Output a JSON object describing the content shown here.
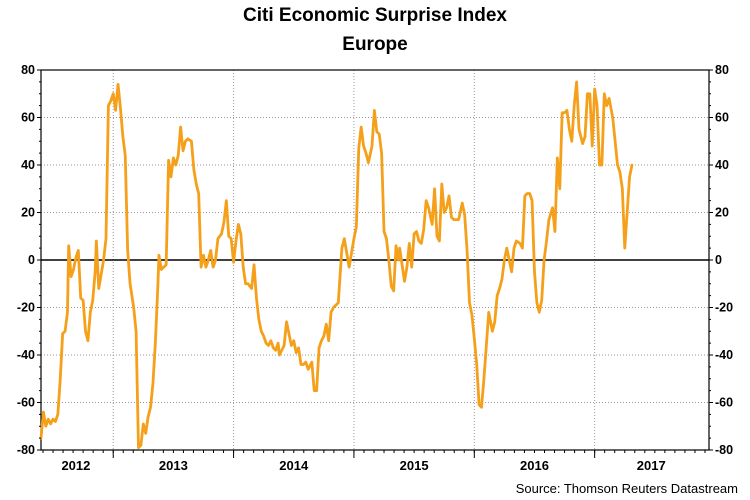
{
  "chart_data": {
    "type": "line",
    "title": "Citi Economic Surprise Index",
    "subtitle": "Europe",
    "xlabel": "",
    "ylabel": "",
    "ylim": [
      -80,
      80
    ],
    "y_ticks": [
      80,
      60,
      40,
      20,
      0,
      -20,
      -40,
      -60,
      -80
    ],
    "y_tick_labels": [
      "80",
      "60",
      "40",
      "20",
      "0",
      "-20",
      "-40",
      "-60",
      "-80"
    ],
    "x_range": [
      2011.9,
      2017.45
    ],
    "x_year_boundaries": [
      2012.5,
      2013.5,
      2014.5,
      2015.5,
      2016.5
    ],
    "x_year_labels": [
      {
        "label": "2012",
        "x": 2012.19
      },
      {
        "label": "2013",
        "x": 2013.0
      },
      {
        "label": "2014",
        "x": 2014.0
      },
      {
        "label": "2015",
        "x": 2015.0
      },
      {
        "label": "2016",
        "x": 2016.0
      },
      {
        "label": "2017",
        "x": 2016.97
      }
    ],
    "grid": true,
    "line_color": "#f5a01a",
    "series": [
      {
        "values": [
          [
            2011.9,
            -75
          ],
          [
            2011.92,
            -64
          ],
          [
            2011.94,
            -70
          ],
          [
            2011.96,
            -67
          ],
          [
            2011.98,
            -69
          ],
          [
            2012.0,
            -67
          ],
          [
            2012.02,
            -68
          ],
          [
            2012.04,
            -65
          ],
          [
            2012.06,
            -50
          ],
          [
            2012.08,
            -31
          ],
          [
            2012.1,
            -30
          ],
          [
            2012.12,
            -22
          ],
          [
            2012.13,
            6
          ],
          [
            2012.15,
            -7
          ],
          [
            2012.17,
            -4
          ],
          [
            2012.19,
            1
          ],
          [
            2012.21,
            4
          ],
          [
            2012.23,
            -16
          ],
          [
            2012.25,
            -17
          ],
          [
            2012.27,
            -30
          ],
          [
            2012.29,
            -34
          ],
          [
            2012.31,
            -22
          ],
          [
            2012.33,
            -17
          ],
          [
            2012.35,
            -5
          ],
          [
            2012.36,
            8
          ],
          [
            2012.38,
            -12
          ],
          [
            2012.4,
            -6
          ],
          [
            2012.42,
            0
          ],
          [
            2012.44,
            9
          ],
          [
            2012.46,
            65
          ],
          [
            2012.48,
            67
          ],
          [
            2012.5,
            70
          ],
          [
            2012.52,
            63
          ],
          [
            2012.54,
            74
          ],
          [
            2012.56,
            64
          ],
          [
            2012.58,
            52
          ],
          [
            2012.6,
            44
          ],
          [
            2012.62,
            4
          ],
          [
            2012.64,
            -10
          ],
          [
            2012.67,
            -20
          ],
          [
            2012.69,
            -30
          ],
          [
            2012.71,
            -79
          ],
          [
            2012.73,
            -78
          ],
          [
            2012.75,
            -69
          ],
          [
            2012.77,
            -73
          ],
          [
            2012.79,
            -66
          ],
          [
            2012.81,
            -62
          ],
          [
            2012.83,
            -52
          ],
          [
            2012.85,
            -35
          ],
          [
            2012.87,
            -12
          ],
          [
            2012.88,
            2
          ],
          [
            2012.9,
            -4
          ],
          [
            2012.92,
            -3
          ],
          [
            2012.94,
            -2
          ],
          [
            2012.96,
            42
          ],
          [
            2012.98,
            35
          ],
          [
            2013.0,
            43
          ],
          [
            2013.02,
            40
          ],
          [
            2013.04,
            44
          ],
          [
            2013.06,
            56
          ],
          [
            2013.08,
            46
          ],
          [
            2013.1,
            50
          ],
          [
            2013.12,
            51
          ],
          [
            2013.15,
            50
          ],
          [
            2013.17,
            38
          ],
          [
            2013.19,
            32
          ],
          [
            2013.21,
            28
          ],
          [
            2013.23,
            -3
          ],
          [
            2013.25,
            2
          ],
          [
            2013.27,
            -3
          ],
          [
            2013.29,
            0
          ],
          [
            2013.31,
            4
          ],
          [
            2013.33,
            -3
          ],
          [
            2013.35,
            0
          ],
          [
            2013.37,
            9
          ],
          [
            2013.4,
            11
          ],
          [
            2013.42,
            16
          ],
          [
            2013.44,
            25
          ],
          [
            2013.46,
            10
          ],
          [
            2013.48,
            9
          ],
          [
            2013.5,
            -1
          ],
          [
            2013.52,
            8
          ],
          [
            2013.54,
            15
          ],
          [
            2013.56,
            11
          ],
          [
            2013.58,
            -3
          ],
          [
            2013.6,
            -10
          ],
          [
            2013.62,
            -10
          ],
          [
            2013.65,
            -12
          ],
          [
            2013.67,
            -2
          ],
          [
            2013.69,
            -16
          ],
          [
            2013.71,
            -25
          ],
          [
            2013.73,
            -30
          ],
          [
            2013.75,
            -32
          ],
          [
            2013.77,
            -35
          ],
          [
            2013.79,
            -36
          ],
          [
            2013.81,
            -34
          ],
          [
            2013.83,
            -37
          ],
          [
            2013.85,
            -38
          ],
          [
            2013.87,
            -35
          ],
          [
            2013.88,
            -40
          ],
          [
            2013.9,
            -38
          ],
          [
            2013.92,
            -36
          ],
          [
            2013.94,
            -26
          ],
          [
            2013.96,
            -31
          ],
          [
            2013.98,
            -36
          ],
          [
            2014.0,
            -34
          ],
          [
            2014.02,
            -39
          ],
          [
            2014.04,
            -37
          ],
          [
            2014.06,
            -44
          ],
          [
            2014.08,
            -44
          ],
          [
            2014.1,
            -43
          ],
          [
            2014.12,
            -46
          ],
          [
            2014.15,
            -43
          ],
          [
            2014.17,
            -55
          ],
          [
            2014.19,
            -55
          ],
          [
            2014.21,
            -37
          ],
          [
            2014.23,
            -34
          ],
          [
            2014.25,
            -32
          ],
          [
            2014.27,
            -27
          ],
          [
            2014.29,
            -34
          ],
          [
            2014.31,
            -22
          ],
          [
            2014.33,
            -20
          ],
          [
            2014.35,
            -19
          ],
          [
            2014.37,
            -18
          ],
          [
            2014.4,
            5
          ],
          [
            2014.42,
            9
          ],
          [
            2014.44,
            3
          ],
          [
            2014.46,
            -3
          ],
          [
            2014.48,
            3
          ],
          [
            2014.5,
            9
          ],
          [
            2014.52,
            14
          ],
          [
            2014.54,
            47
          ],
          [
            2014.56,
            56
          ],
          [
            2014.58,
            48
          ],
          [
            2014.6,
            45
          ],
          [
            2014.62,
            41
          ],
          [
            2014.65,
            48
          ],
          [
            2014.67,
            63
          ],
          [
            2014.69,
            54
          ],
          [
            2014.71,
            53
          ],
          [
            2014.73,
            45
          ],
          [
            2014.75,
            12
          ],
          [
            2014.77,
            9
          ],
          [
            2014.79,
            0
          ],
          [
            2014.81,
            -11
          ],
          [
            2014.83,
            -13
          ],
          [
            2014.85,
            6
          ],
          [
            2014.87,
            0
          ],
          [
            2014.88,
            5
          ],
          [
            2014.9,
            -2
          ],
          [
            2014.92,
            -9
          ],
          [
            2014.94,
            -3
          ],
          [
            2014.96,
            7
          ],
          [
            2014.98,
            -3
          ],
          [
            2015.0,
            11
          ],
          [
            2015.02,
            12
          ],
          [
            2015.04,
            8
          ],
          [
            2015.06,
            7
          ],
          [
            2015.08,
            13
          ],
          [
            2015.1,
            25
          ],
          [
            2015.12,
            22
          ],
          [
            2015.15,
            15
          ],
          [
            2015.17,
            30
          ],
          [
            2015.19,
            10
          ],
          [
            2015.21,
            8
          ],
          [
            2015.23,
            32
          ],
          [
            2015.25,
            20
          ],
          [
            2015.27,
            22
          ],
          [
            2015.29,
            27
          ],
          [
            2015.31,
            18
          ],
          [
            2015.33,
            17
          ],
          [
            2015.35,
            17
          ],
          [
            2015.37,
            17
          ],
          [
            2015.4,
            24
          ],
          [
            2015.42,
            19
          ],
          [
            2015.44,
            4
          ],
          [
            2015.46,
            -18
          ],
          [
            2015.48,
            -23
          ],
          [
            2015.5,
            -33
          ],
          [
            2015.52,
            -44
          ],
          [
            2015.54,
            -61
          ],
          [
            2015.56,
            -62
          ],
          [
            2015.58,
            -50
          ],
          [
            2015.6,
            -36
          ],
          [
            2015.62,
            -22
          ],
          [
            2015.65,
            -30
          ],
          [
            2015.67,
            -26
          ],
          [
            2015.69,
            -15
          ],
          [
            2015.71,
            -12
          ],
          [
            2015.73,
            -8
          ],
          [
            2015.75,
            0
          ],
          [
            2015.77,
            5
          ],
          [
            2015.79,
            0
          ],
          [
            2015.81,
            -5
          ],
          [
            2015.83,
            5
          ],
          [
            2015.85,
            8
          ],
          [
            2015.88,
            7
          ],
          [
            2015.9,
            5
          ],
          [
            2015.92,
            27
          ],
          [
            2015.94,
            28
          ],
          [
            2015.96,
            28
          ],
          [
            2015.98,
            25
          ],
          [
            2016.0,
            -5
          ],
          [
            2016.02,
            -18
          ],
          [
            2016.04,
            -22
          ],
          [
            2016.06,
            -17
          ],
          [
            2016.08,
            0
          ],
          [
            2016.1,
            8
          ],
          [
            2016.12,
            17
          ],
          [
            2016.15,
            22
          ],
          [
            2016.17,
            12
          ],
          [
            2016.19,
            43
          ],
          [
            2016.21,
            30
          ],
          [
            2016.23,
            62
          ],
          [
            2016.25,
            62
          ],
          [
            2016.27,
            63
          ],
          [
            2016.29,
            55
          ],
          [
            2016.31,
            50
          ],
          [
            2016.33,
            65
          ],
          [
            2016.35,
            75
          ],
          [
            2016.37,
            55
          ],
          [
            2016.4,
            49
          ],
          [
            2016.42,
            52
          ],
          [
            2016.44,
            70
          ],
          [
            2016.46,
            70
          ],
          [
            2016.48,
            48
          ],
          [
            2016.5,
            72
          ],
          [
            2016.52,
            65
          ],
          [
            2016.54,
            40
          ],
          [
            2016.56,
            40
          ],
          [
            2016.58,
            70
          ],
          [
            2016.6,
            65
          ],
          [
            2016.62,
            68
          ],
          [
            2016.65,
            60
          ],
          [
            2016.67,
            50
          ],
          [
            2016.69,
            40
          ],
          [
            2016.71,
            37
          ],
          [
            2016.73,
            30
          ],
          [
            2016.75,
            5
          ],
          [
            2016.77,
            20
          ],
          [
            2016.79,
            35
          ],
          [
            2016.81,
            40
          ]
        ]
      }
    ]
  },
  "footer": {
    "source": "Source: Thomson Reuters Datastream"
  }
}
